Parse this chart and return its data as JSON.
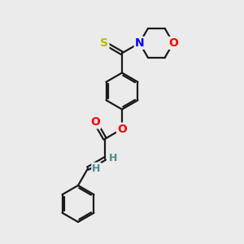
{
  "background_color": "#ebebeb",
  "bond_color": "#1a1a1a",
  "lw": 1.6,
  "dbo": 0.055,
  "figsize": [
    3.0,
    3.0
  ],
  "dpi": 100,
  "xlim": [
    -2.8,
    2.8
  ],
  "ylim": [
    -4.8,
    3.8
  ],
  "ring_r": 0.65,
  "atom_labels": {
    "S": {
      "color": "#b8b800",
      "fontsize": 10,
      "fontweight": "bold"
    },
    "N": {
      "color": "#0000ff",
      "fontsize": 10,
      "fontweight": "bold"
    },
    "O_red": {
      "color": "#ff0000",
      "fontsize": 10,
      "fontweight": "bold"
    },
    "H": {
      "color": "#4a8a8a",
      "fontsize": 9,
      "fontweight": "bold"
    }
  }
}
